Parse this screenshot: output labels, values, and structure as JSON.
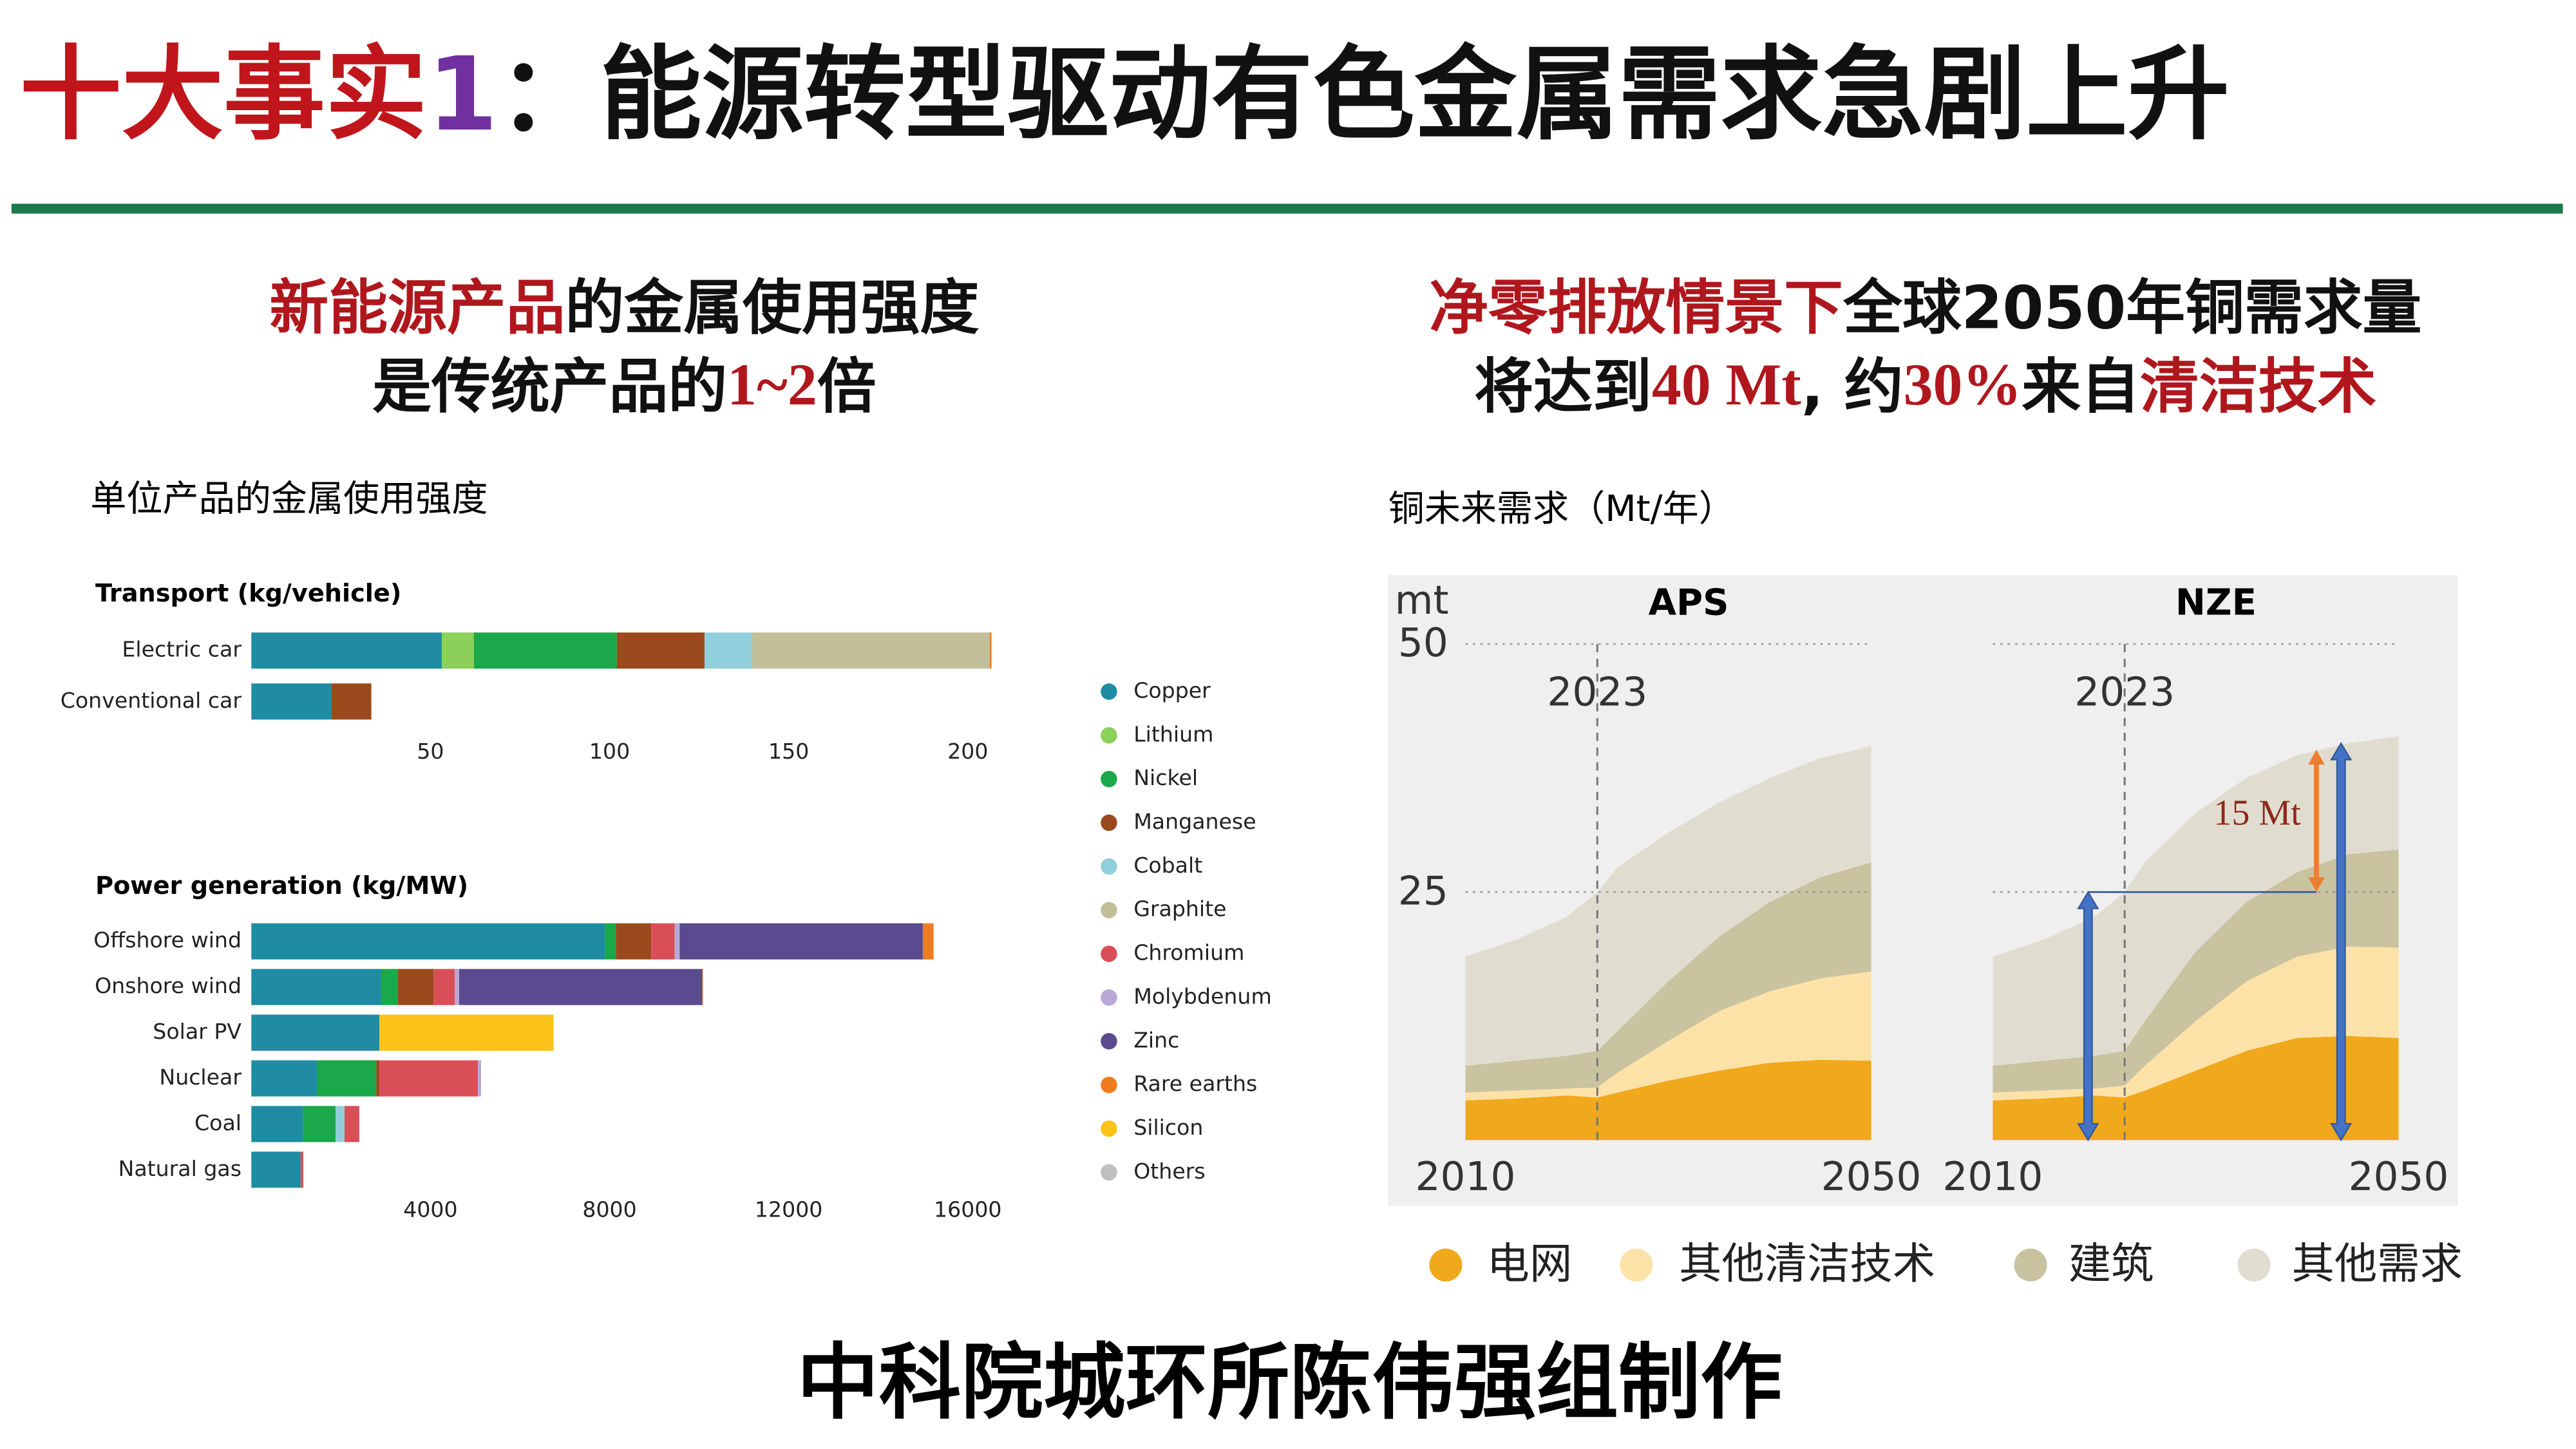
{
  "title_parts": [
    "十大事实",
    "1",
    "：能源转型驱动有色金属需求急剧上升"
  ],
  "left_heading": [
    [
      "新能源产品",
      "的金属使用强度"
    ],
    [
      "是传统产品的",
      "1~2",
      "倍"
    ]
  ],
  "right_heading": [
    [
      "净零排放情景下",
      "全球2050年铜需求量"
    ],
    [
      "将达到",
      "40 Mt",
      ", 约",
      "30%",
      "来自",
      "清洁技术"
    ]
  ],
  "footer": "中科院城环所陈伟强组制作",
  "chart_data": [
    {
      "type": "bar",
      "orientation": "horizontal",
      "stacked": true,
      "title": "单位产品的金属使用强度",
      "panels": [
        {
          "title": "Transport (kg/vehicle)",
          "categories": [
            "Electric car",
            "Conventional car"
          ],
          "xlim": [
            0,
            205
          ],
          "xticks": [
            50,
            100,
            150,
            200
          ]
        },
        {
          "title": "Power generation (kg/MW)",
          "categories": [
            "Offshore wind",
            "Onshore wind",
            "Solar PV",
            "Nuclear",
            "Coal",
            "Natural gas"
          ],
          "xlim": [
            0,
            16400
          ],
          "xticks": [
            4000,
            8000,
            12000,
            16000
          ]
        }
      ],
      "series": [
        {
          "name": "Copper",
          "color": "#1f8ca3",
          "values": [
            [
              53.2,
              22.3
            ],
            [
              7900,
              2900,
              2860,
              1470,
              1150,
              1100
            ]
          ]
        },
        {
          "name": "Lithium",
          "color": "#8cd05a",
          "values": [
            [
              8.9,
              0
            ],
            [
              0,
              0,
              0,
              0,
              0,
              0
            ]
          ]
        },
        {
          "name": "Nickel",
          "color": "#1aa84a",
          "values": [
            [
              39.9,
              0
            ],
            [
              240,
              370,
              0,
              1320,
              730,
              0
            ]
          ]
        },
        {
          "name": "Manganese",
          "color": "#9a4a1c",
          "values": [
            [
              24.5,
              11.2
            ],
            [
              790,
              800,
              0,
              70,
              0,
              0
            ]
          ]
        },
        {
          "name": "Cobalt",
          "color": "#92cfdc",
          "values": [
            [
              13.3,
              0
            ],
            [
              0,
              0,
              0,
              0,
              200,
              0
            ]
          ]
        },
        {
          "name": "Graphite",
          "color": "#c2bf98",
          "values": [
            [
              66.3,
              0
            ],
            [
              0,
              0,
              0,
              0,
              0,
              0
            ]
          ]
        },
        {
          "name": "Chromium",
          "color": "#d94f57",
          "values": [
            [
              0,
              0
            ],
            [
              525,
              470,
              0,
              2200,
              330,
              60
            ]
          ]
        },
        {
          "name": "Molybdenum",
          "color": "#b9a8d6",
          "values": [
            [
              0,
              0
            ],
            [
              110,
              100,
              0,
              70,
              0,
              0
            ]
          ]
        },
        {
          "name": "Zinc",
          "color": "#5b4a8f",
          "values": [
            [
              0,
              0
            ],
            [
              5430,
              5430,
              0,
              0,
              0,
              0
            ]
          ]
        },
        {
          "name": "Rare earths",
          "color": "#ef7c21",
          "values": [
            [
              0.5,
              0
            ],
            [
              240,
              14,
              0,
              0,
              0,
              0
            ]
          ]
        },
        {
          "name": "Silicon",
          "color": "#fbc31a",
          "values": [
            [
              0,
              0
            ],
            [
              0,
              0,
              3890,
              0,
              0,
              0
            ]
          ]
        },
        {
          "name": "Others",
          "color": "#bfbfbf",
          "values": [
            [
              0,
              0
            ],
            [
              0,
              0,
              0,
              0,
              0,
              0
            ]
          ]
        }
      ]
    },
    {
      "type": "area",
      "stacked": true,
      "title": "铜未来需求（Mt/年）",
      "y_label": "mt",
      "x": [
        2010,
        2015,
        2020,
        2023,
        2025,
        2030,
        2035,
        2040,
        2045,
        2050
      ],
      "xlim": [
        2010,
        2050
      ],
      "xticks": [
        2010,
        2050
      ],
      "ylim": [
        0,
        50
      ],
      "yticks": [
        25,
        50
      ],
      "marker": 2023,
      "panels": [
        {
          "title": "APS"
        },
        {
          "title": "NZE",
          "arrows": [
            25,
            40
          ],
          "annotation": "15 Mt"
        }
      ],
      "series": [
        {
          "name": "电网",
          "color": "#f0a81c",
          "values": [
            [
              4,
              4.2,
              4.5,
              4.3,
              4.8,
              6,
              7,
              7.8,
              8.1,
              8
            ],
            [
              4,
              4.2,
              4.5,
              4.3,
              5,
              7,
              9,
              10.3,
              10.5,
              10.3
            ]
          ]
        },
        {
          "name": "其他清洁技术",
          "color": "#fde2a8",
          "values": [
            [
              0.8,
              0.8,
              0.7,
              1,
              2,
              4,
              6,
              7.2,
              8.2,
              9
            ],
            [
              0.8,
              0.8,
              0.7,
              1.2,
              2.5,
              5,
              7,
              8.2,
              9,
              9.1
            ]
          ]
        },
        {
          "name": "建筑",
          "color": "#c9c3a0",
          "values": [
            [
              2.7,
              3,
              3.3,
              3.7,
              4.2,
              6,
              7.5,
              9,
              10.2,
              11
            ],
            [
              2.7,
              3,
              3.3,
              3.5,
              4.5,
              7,
              8,
              8.5,
              9.3,
              9.9
            ]
          ]
        },
        {
          "name": "其他需求",
          "color": "#e0ddd0",
          "values": [
            [
              11,
              12.2,
              14,
              16,
              16.5,
              15,
              13.5,
              12.5,
              12,
              11.7
            ],
            [
              11,
              12.2,
              14,
              16,
              16,
              14,
              12.5,
              11.8,
              11.2,
              11.4
            ]
          ]
        }
      ]
    }
  ]
}
